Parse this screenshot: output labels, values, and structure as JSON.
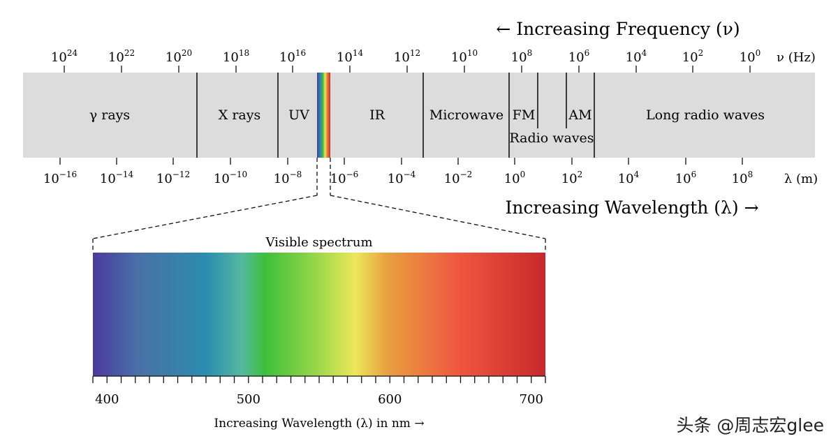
{
  "title_frequency": "← Increasing Frequency (ν)",
  "title_wavelength": "Increasing Wavelength (λ) →",
  "frequency_axis": {
    "unit_label": "ν (Hz)",
    "ticks": [
      {
        "base": "10",
        "exp": "24"
      },
      {
        "base": "10",
        "exp": "22"
      },
      {
        "base": "10",
        "exp": "20"
      },
      {
        "base": "10",
        "exp": "18"
      },
      {
        "base": "10",
        "exp": "16"
      },
      {
        "base": "10",
        "exp": "14"
      },
      {
        "base": "10",
        "exp": "12"
      },
      {
        "base": "10",
        "exp": "10"
      },
      {
        "base": "10",
        "exp": "8"
      },
      {
        "base": "10",
        "exp": "6"
      },
      {
        "base": "10",
        "exp": "4"
      },
      {
        "base": "10",
        "exp": "2"
      },
      {
        "base": "10",
        "exp": "0"
      }
    ]
  },
  "wavelength_axis": {
    "unit_label": "λ (m)",
    "ticks": [
      {
        "base": "10",
        "exp": "−16"
      },
      {
        "base": "10",
        "exp": "−14"
      },
      {
        "base": "10",
        "exp": "−12"
      },
      {
        "base": "10",
        "exp": "−10"
      },
      {
        "base": "10",
        "exp": "−8"
      },
      {
        "base": "10",
        "exp": "−6"
      },
      {
        "base": "10",
        "exp": "−4"
      },
      {
        "base": "10",
        "exp": "−2"
      },
      {
        "base": "10",
        "exp": "0"
      },
      {
        "base": "10",
        "exp": "2"
      },
      {
        "base": "10",
        "exp": "4"
      },
      {
        "base": "10",
        "exp": "6"
      },
      {
        "base": "10",
        "exp": "8"
      }
    ]
  },
  "bands": [
    {
      "label": "γ rays"
    },
    {
      "label": "X rays"
    },
    {
      "label": "UV"
    },
    {
      "label": "IR"
    },
    {
      "label": "Microwave"
    },
    {
      "label": "FM"
    },
    {
      "label": "AM"
    },
    {
      "label": "Radio waves"
    },
    {
      "label": "Long radio waves"
    }
  ],
  "visible": {
    "title": "Visible spectrum",
    "axis_label": "Increasing Wavelength (λ) in nm →",
    "range_nm": [
      390,
      710
    ],
    "tick_step_nm": 10,
    "labels": [
      "400",
      "500",
      "600",
      "700"
    ]
  },
  "colors": {
    "band_bg": "#dcdcdc",
    "violet": "#4b3a9e",
    "blue": "#2b8cb0",
    "green": "#3dbf3a",
    "yellow": "#ece85a",
    "orange": "#e88a3a",
    "red": "#c8282a"
  },
  "watermark": "头条 @周志宏glee"
}
